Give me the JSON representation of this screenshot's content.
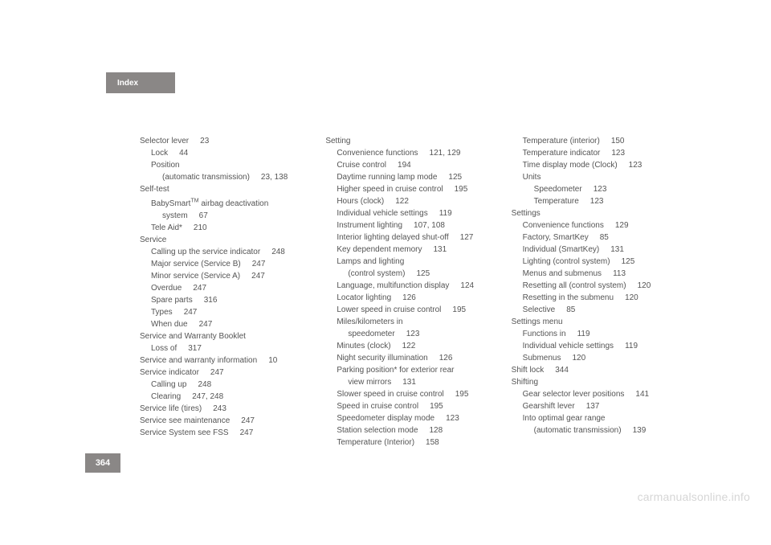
{
  "tab_label": "Index",
  "page_number": "364",
  "watermark": "carmanualsonline.info",
  "cols": [
    [
      {
        "i": 0,
        "t": "Selector lever",
        "p": "23"
      },
      {
        "i": 1,
        "t": "Lock",
        "p": "44"
      },
      {
        "i": 1,
        "t": "Position"
      },
      {
        "i": 2,
        "t": "(automatic transmission)",
        "p": "23, 138"
      },
      {
        "i": 0,
        "t": "Self-test"
      },
      {
        "i": 1,
        "html": "BabySmart<sup>TM</sup> airbag deactivation"
      },
      {
        "i": 2,
        "t": "system",
        "p": "67"
      },
      {
        "i": 1,
        "t": "Tele Aid*",
        "p": "210"
      },
      {
        "i": 0,
        "t": "Service"
      },
      {
        "i": 1,
        "t": "Calling up the service indicator",
        "p": "248"
      },
      {
        "i": 1,
        "t": "Major service (Service B)",
        "p": "247"
      },
      {
        "i": 1,
        "t": "Minor service (Service A)",
        "p": "247"
      },
      {
        "i": 1,
        "t": "Overdue",
        "p": "247"
      },
      {
        "i": 1,
        "t": "Spare parts",
        "p": "316"
      },
      {
        "i": 1,
        "t": "Types",
        "p": "247"
      },
      {
        "i": 1,
        "t": "When due",
        "p": "247"
      },
      {
        "i": 0,
        "t": "Service and Warranty Booklet"
      },
      {
        "i": 1,
        "t": "Loss of",
        "p": "317"
      },
      {
        "i": 0,
        "t": "Service and warranty information",
        "p": "10"
      },
      {
        "i": 0,
        "t": "Service indicator",
        "p": "247"
      },
      {
        "i": 1,
        "t": "Calling up",
        "p": "248"
      },
      {
        "i": 1,
        "t": "Clearing",
        "p": "247, 248"
      },
      {
        "i": 0,
        "t": "Service life (tires)",
        "p": "243"
      },
      {
        "i": 0,
        "t": "Service see maintenance",
        "p": "247"
      },
      {
        "i": 0,
        "t": "Service System see FSS",
        "p": "247"
      }
    ],
    [
      {
        "i": 0,
        "t": "Setting"
      },
      {
        "i": 1,
        "t": "Convenience functions",
        "p": "121, 129"
      },
      {
        "i": 1,
        "t": "Cruise control",
        "p": "194"
      },
      {
        "i": 1,
        "t": "Daytime running lamp mode",
        "p": "125"
      },
      {
        "i": 1,
        "t": "Higher speed in cruise control",
        "p": "195"
      },
      {
        "i": 1,
        "t": "Hours (clock)",
        "p": "122"
      },
      {
        "i": 1,
        "t": "Individual vehicle settings",
        "p": "119"
      },
      {
        "i": 1,
        "t": "Instrument lighting",
        "p": "107, 108"
      },
      {
        "i": 1,
        "t": "Interior lighting delayed shut-off",
        "p": "127"
      },
      {
        "i": 1,
        "t": "Key dependent memory",
        "p": "131"
      },
      {
        "i": 1,
        "t": "Lamps and lighting"
      },
      {
        "i": 2,
        "t": "(control system)",
        "p": "125"
      },
      {
        "i": 1,
        "t": "Language, multifunction display",
        "p": "124"
      },
      {
        "i": 1,
        "t": "Locator lighting",
        "p": "126"
      },
      {
        "i": 1,
        "t": "Lower speed in cruise control",
        "p": "195"
      },
      {
        "i": 1,
        "t": "Miles/kilometers in"
      },
      {
        "i": 2,
        "t": "speedometer",
        "p": "123"
      },
      {
        "i": 1,
        "t": "Minutes (clock)",
        "p": "122"
      },
      {
        "i": 1,
        "t": "Night security illumination",
        "p": "126"
      },
      {
        "i": 1,
        "t": "Parking position* for exterior rear"
      },
      {
        "i": 2,
        "t": "view mirrors",
        "p": "131"
      },
      {
        "i": 1,
        "t": "Slower speed in cruise control",
        "p": "195"
      },
      {
        "i": 1,
        "t": "Speed in cruise control",
        "p": "195"
      },
      {
        "i": 1,
        "t": "Speedometer display mode",
        "p": "123"
      },
      {
        "i": 1,
        "t": "Station selection mode",
        "p": "128"
      },
      {
        "i": 1,
        "t": "Temperature (Interior)",
        "p": "158"
      }
    ],
    [
      {
        "i": 1,
        "t": "Temperature (interior)",
        "p": "150"
      },
      {
        "i": 1,
        "t": "Temperature indicator",
        "p": "123"
      },
      {
        "i": 1,
        "t": "Time display mode (Clock)",
        "p": "123"
      },
      {
        "i": 1,
        "t": "Units"
      },
      {
        "i": 2,
        "t": "Speedometer",
        "p": "123"
      },
      {
        "i": 2,
        "t": "Temperature",
        "p": "123"
      },
      {
        "i": 0,
        "t": "Settings"
      },
      {
        "i": 1,
        "t": "Convenience functions",
        "p": "129"
      },
      {
        "i": 1,
        "t": "Factory, SmartKey",
        "p": "85"
      },
      {
        "i": 1,
        "t": "Individual (SmartKey)",
        "p": "131"
      },
      {
        "i": 1,
        "t": "Lighting (control system)",
        "p": "125"
      },
      {
        "i": 1,
        "t": "Menus and submenus",
        "p": "113"
      },
      {
        "i": 1,
        "t": "Resetting all (control system)",
        "p": "120"
      },
      {
        "i": 1,
        "t": "Resetting in the submenu",
        "p": "120"
      },
      {
        "i": 1,
        "t": "Selective",
        "p": "85"
      },
      {
        "i": 0,
        "t": "Settings menu"
      },
      {
        "i": 1,
        "t": "Functions in",
        "p": "119"
      },
      {
        "i": 1,
        "t": "Individual vehicle settings",
        "p": "119"
      },
      {
        "i": 1,
        "t": "Submenus",
        "p": "120"
      },
      {
        "i": 0,
        "t": "Shift lock",
        "p": "344"
      },
      {
        "i": 0,
        "t": "Shifting"
      },
      {
        "i": 1,
        "t": "Gear selector lever positions",
        "p": "141"
      },
      {
        "i": 1,
        "t": "Gearshift lever",
        "p": "137"
      },
      {
        "i": 1,
        "t": "Into optimal gear range"
      },
      {
        "i": 2,
        "t": "(automatic transmission)",
        "p": "139"
      }
    ]
  ]
}
